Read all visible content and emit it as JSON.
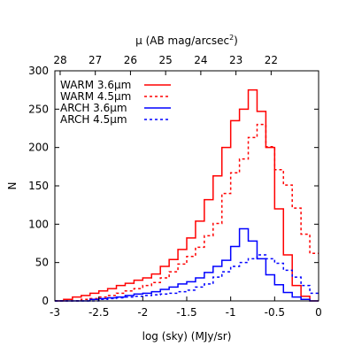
{
  "chart_data": {
    "type": "histogram",
    "xlabel": "log (sky) (MJy/sr)",
    "ylabel": "N",
    "top_axis_label_prefix": "μ (AB mag/arcsec",
    "top_axis_label_sup": "2",
    "top_axis_label_suffix": ")",
    "xlim": [
      -3,
      0
    ],
    "ylim": [
      0,
      300
    ],
    "grid": false,
    "legend_position": "top-left",
    "x_ticks": [
      -3,
      -2.5,
      -2,
      -1.5,
      -1,
      -0.5,
      0
    ],
    "x_tick_labels": [
      "-3",
      "-2.5",
      "-2",
      "-1.5",
      "-1",
      "-0.5",
      "0"
    ],
    "y_ticks": [
      0,
      50,
      100,
      150,
      200,
      250,
      300
    ],
    "y_tick_labels": [
      "0",
      "50",
      "100",
      "150",
      "200",
      "250",
      "300"
    ],
    "top_ticks": [
      {
        "label": "28",
        "x": -2.94
      },
      {
        "label": "27",
        "x": -2.54
      },
      {
        "label": "26",
        "x": -2.14
      },
      {
        "label": "25",
        "x": -1.74
      },
      {
        "label": "24",
        "x": -1.34
      },
      {
        "label": "23",
        "x": -0.94
      },
      {
        "label": "22",
        "x": -0.54
      }
    ],
    "bins": {
      "start": -3.0,
      "width": 0.1,
      "count": 30
    },
    "series": [
      {
        "name": "WARM 3.6μm",
        "color": "#ff0000",
        "dashed": false,
        "values": [
          0,
          2,
          5,
          7,
          10,
          13,
          16,
          20,
          23,
          27,
          30,
          35,
          45,
          54,
          67,
          82,
          104,
          132,
          163,
          200,
          235,
          250,
          275,
          247,
          200,
          120,
          60,
          20,
          6,
          0
        ]
      },
      {
        "name": "WARM 4.5μm",
        "color": "#ff0000",
        "dashed": true,
        "values": [
          0,
          0,
          0,
          2,
          3,
          5,
          7,
          10,
          13,
          16,
          20,
          24,
          30,
          38,
          48,
          58,
          70,
          85,
          101,
          140,
          167,
          185,
          213,
          230,
          201,
          171,
          151,
          121,
          87,
          62
        ]
      },
      {
        "name": "ARCH 3.6μm",
        "color": "#0000ff",
        "dashed": false,
        "values": [
          0,
          0,
          0,
          0,
          2,
          3,
          4,
          5,
          7,
          9,
          10,
          12,
          15,
          18,
          22,
          25,
          30,
          37,
          45,
          53,
          71,
          94,
          78,
          55,
          34,
          21,
          11,
          5,
          2,
          0
        ]
      },
      {
        "name": "ARCH 4.5μm",
        "color": "#0000ff",
        "dashed": true,
        "values": [
          0,
          0,
          0,
          0,
          0,
          2,
          3,
          4,
          5,
          6,
          7,
          8,
          9,
          10,
          12,
          14,
          18,
          22,
          31,
          38,
          45,
          50,
          55,
          60,
          55,
          49,
          40,
          31,
          20,
          10
        ]
      }
    ]
  }
}
